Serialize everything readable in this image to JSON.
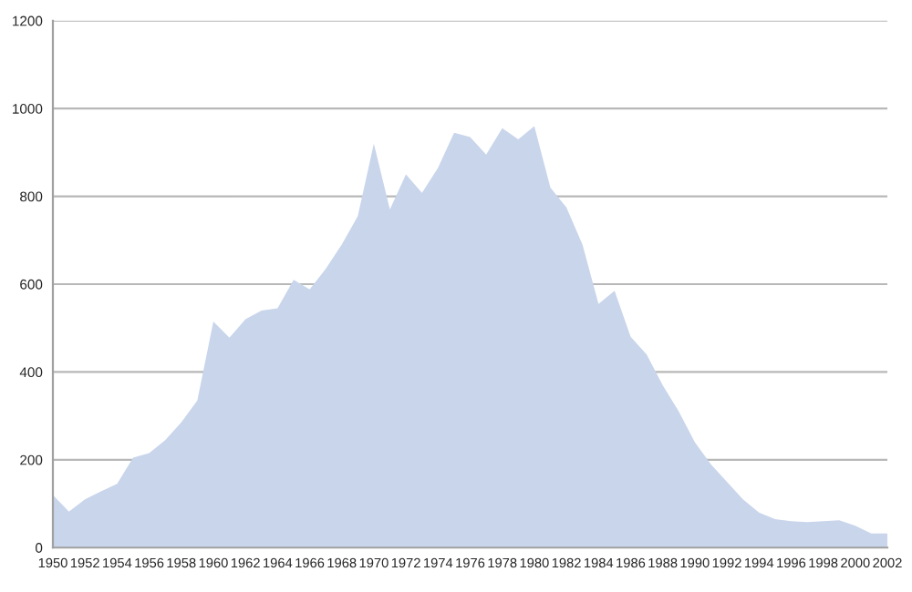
{
  "chart_data": {
    "type": "area",
    "x": [
      1950,
      1951,
      1952,
      1953,
      1954,
      1955,
      1956,
      1957,
      1958,
      1959,
      1960,
      1961,
      1962,
      1963,
      1964,
      1965,
      1966,
      1967,
      1968,
      1969,
      1970,
      1971,
      1972,
      1973,
      1974,
      1975,
      1976,
      1977,
      1978,
      1979,
      1980,
      1981,
      1982,
      1983,
      1984,
      1985,
      1986,
      1987,
      1988,
      1989,
      1990,
      1991,
      1992,
      1993,
      1994,
      1995,
      1996,
      1997,
      1998,
      1999,
      2000,
      2001,
      2002
    ],
    "series": [
      {
        "color": "#c8d5eb",
        "values": [
          120,
          82,
          110,
          128,
          145,
          205,
          215,
          245,
          285,
          335,
          515,
          478,
          520,
          540,
          545,
          610,
          588,
          635,
          690,
          755,
          920,
          770,
          850,
          808,
          865,
          945,
          935,
          895,
          955,
          930,
          960,
          820,
          775,
          690,
          555,
          585,
          480,
          440,
          370,
          310,
          240,
          190,
          150,
          110,
          80,
          65,
          60,
          58,
          60,
          62,
          50,
          32,
          32
        ]
      }
    ],
    "xlim": [
      1950,
      2002
    ],
    "xticks": [
      1950,
      1952,
      1954,
      1956,
      1958,
      1960,
      1962,
      1964,
      1966,
      1968,
      1970,
      1972,
      1974,
      1976,
      1978,
      1980,
      1982,
      1984,
      1986,
      1988,
      1990,
      1992,
      1994,
      1996,
      1998,
      2000,
      2002
    ],
    "ylim": [
      0,
      1200
    ],
    "yticks": [
      0,
      200,
      400,
      600,
      800,
      1000,
      1200
    ],
    "grid": "y",
    "legend": false
  }
}
